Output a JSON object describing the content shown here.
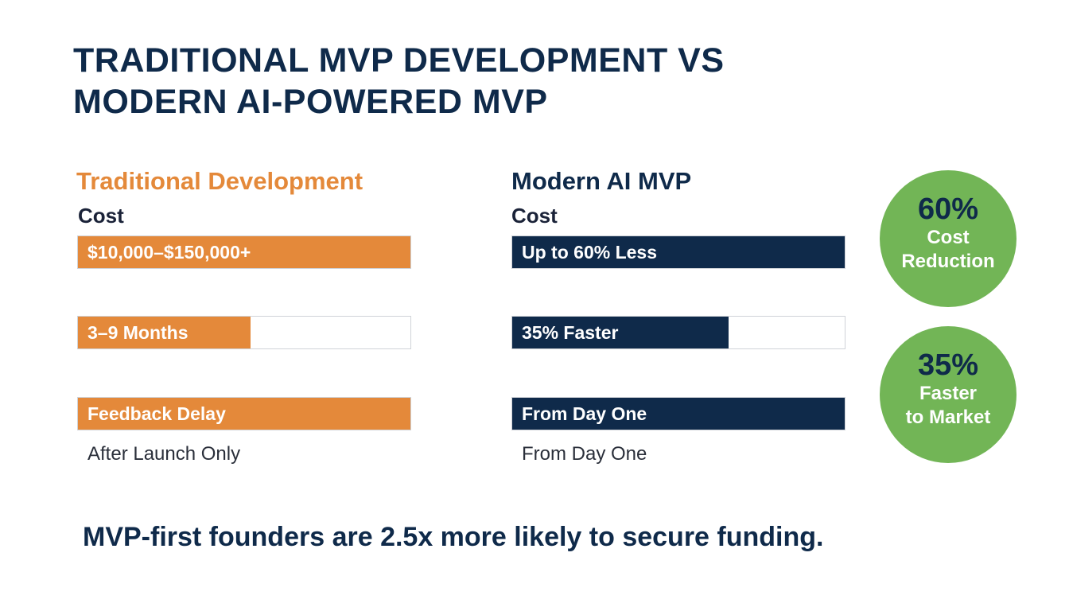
{
  "title": {
    "line1": "TRADITIONAL MVP DEVELOPMENT VS",
    "line2": "MODERN AI-POWERED MVP"
  },
  "columns": {
    "traditional": {
      "heading": "Traditional Development",
      "metric_label": "Cost",
      "bars": [
        {
          "label": "$10,000–$150,000+",
          "fill": 1.0
        },
        {
          "label": "3–9 Months",
          "fill": 0.52
        },
        {
          "label": "Feedback Delay",
          "fill": 1.0
        }
      ],
      "note": "After Launch Only"
    },
    "modern": {
      "heading": "Modern AI MVP",
      "metric_label": "Cost",
      "bars": [
        {
          "label": "Up to 60% Less",
          "fill": 1.0
        },
        {
          "label": "35% Faster",
          "fill": 0.65
        },
        {
          "label": "From Day One",
          "fill": 1.0
        }
      ],
      "note": "From Day One"
    }
  },
  "badges": [
    {
      "value": "60%",
      "caption1": "Cost",
      "caption2": "Reduction"
    },
    {
      "value": "35%",
      "caption1": "Faster",
      "caption2": "to Market"
    }
  ],
  "footer": "MVP-first founders are 2.5x more likely to secure funding.",
  "colors": {
    "traditional": "#e4893a",
    "modern": "#0f2a4a",
    "badge": "#72b556"
  },
  "chart_data": {
    "type": "bar",
    "orientation": "horizontal",
    "categories": [
      "$10,000–$150,000+",
      "3–9 Months",
      "Feedback Delay"
    ],
    "series": [
      {
        "name": "Traditional Development",
        "values": [
          1.0,
          0.52,
          1.0
        ]
      },
      {
        "name": "Modern AI MVP",
        "values": [
          1.0,
          0.65,
          1.0
        ]
      }
    ],
    "xlim": [
      0,
      1
    ],
    "grid": false
  }
}
